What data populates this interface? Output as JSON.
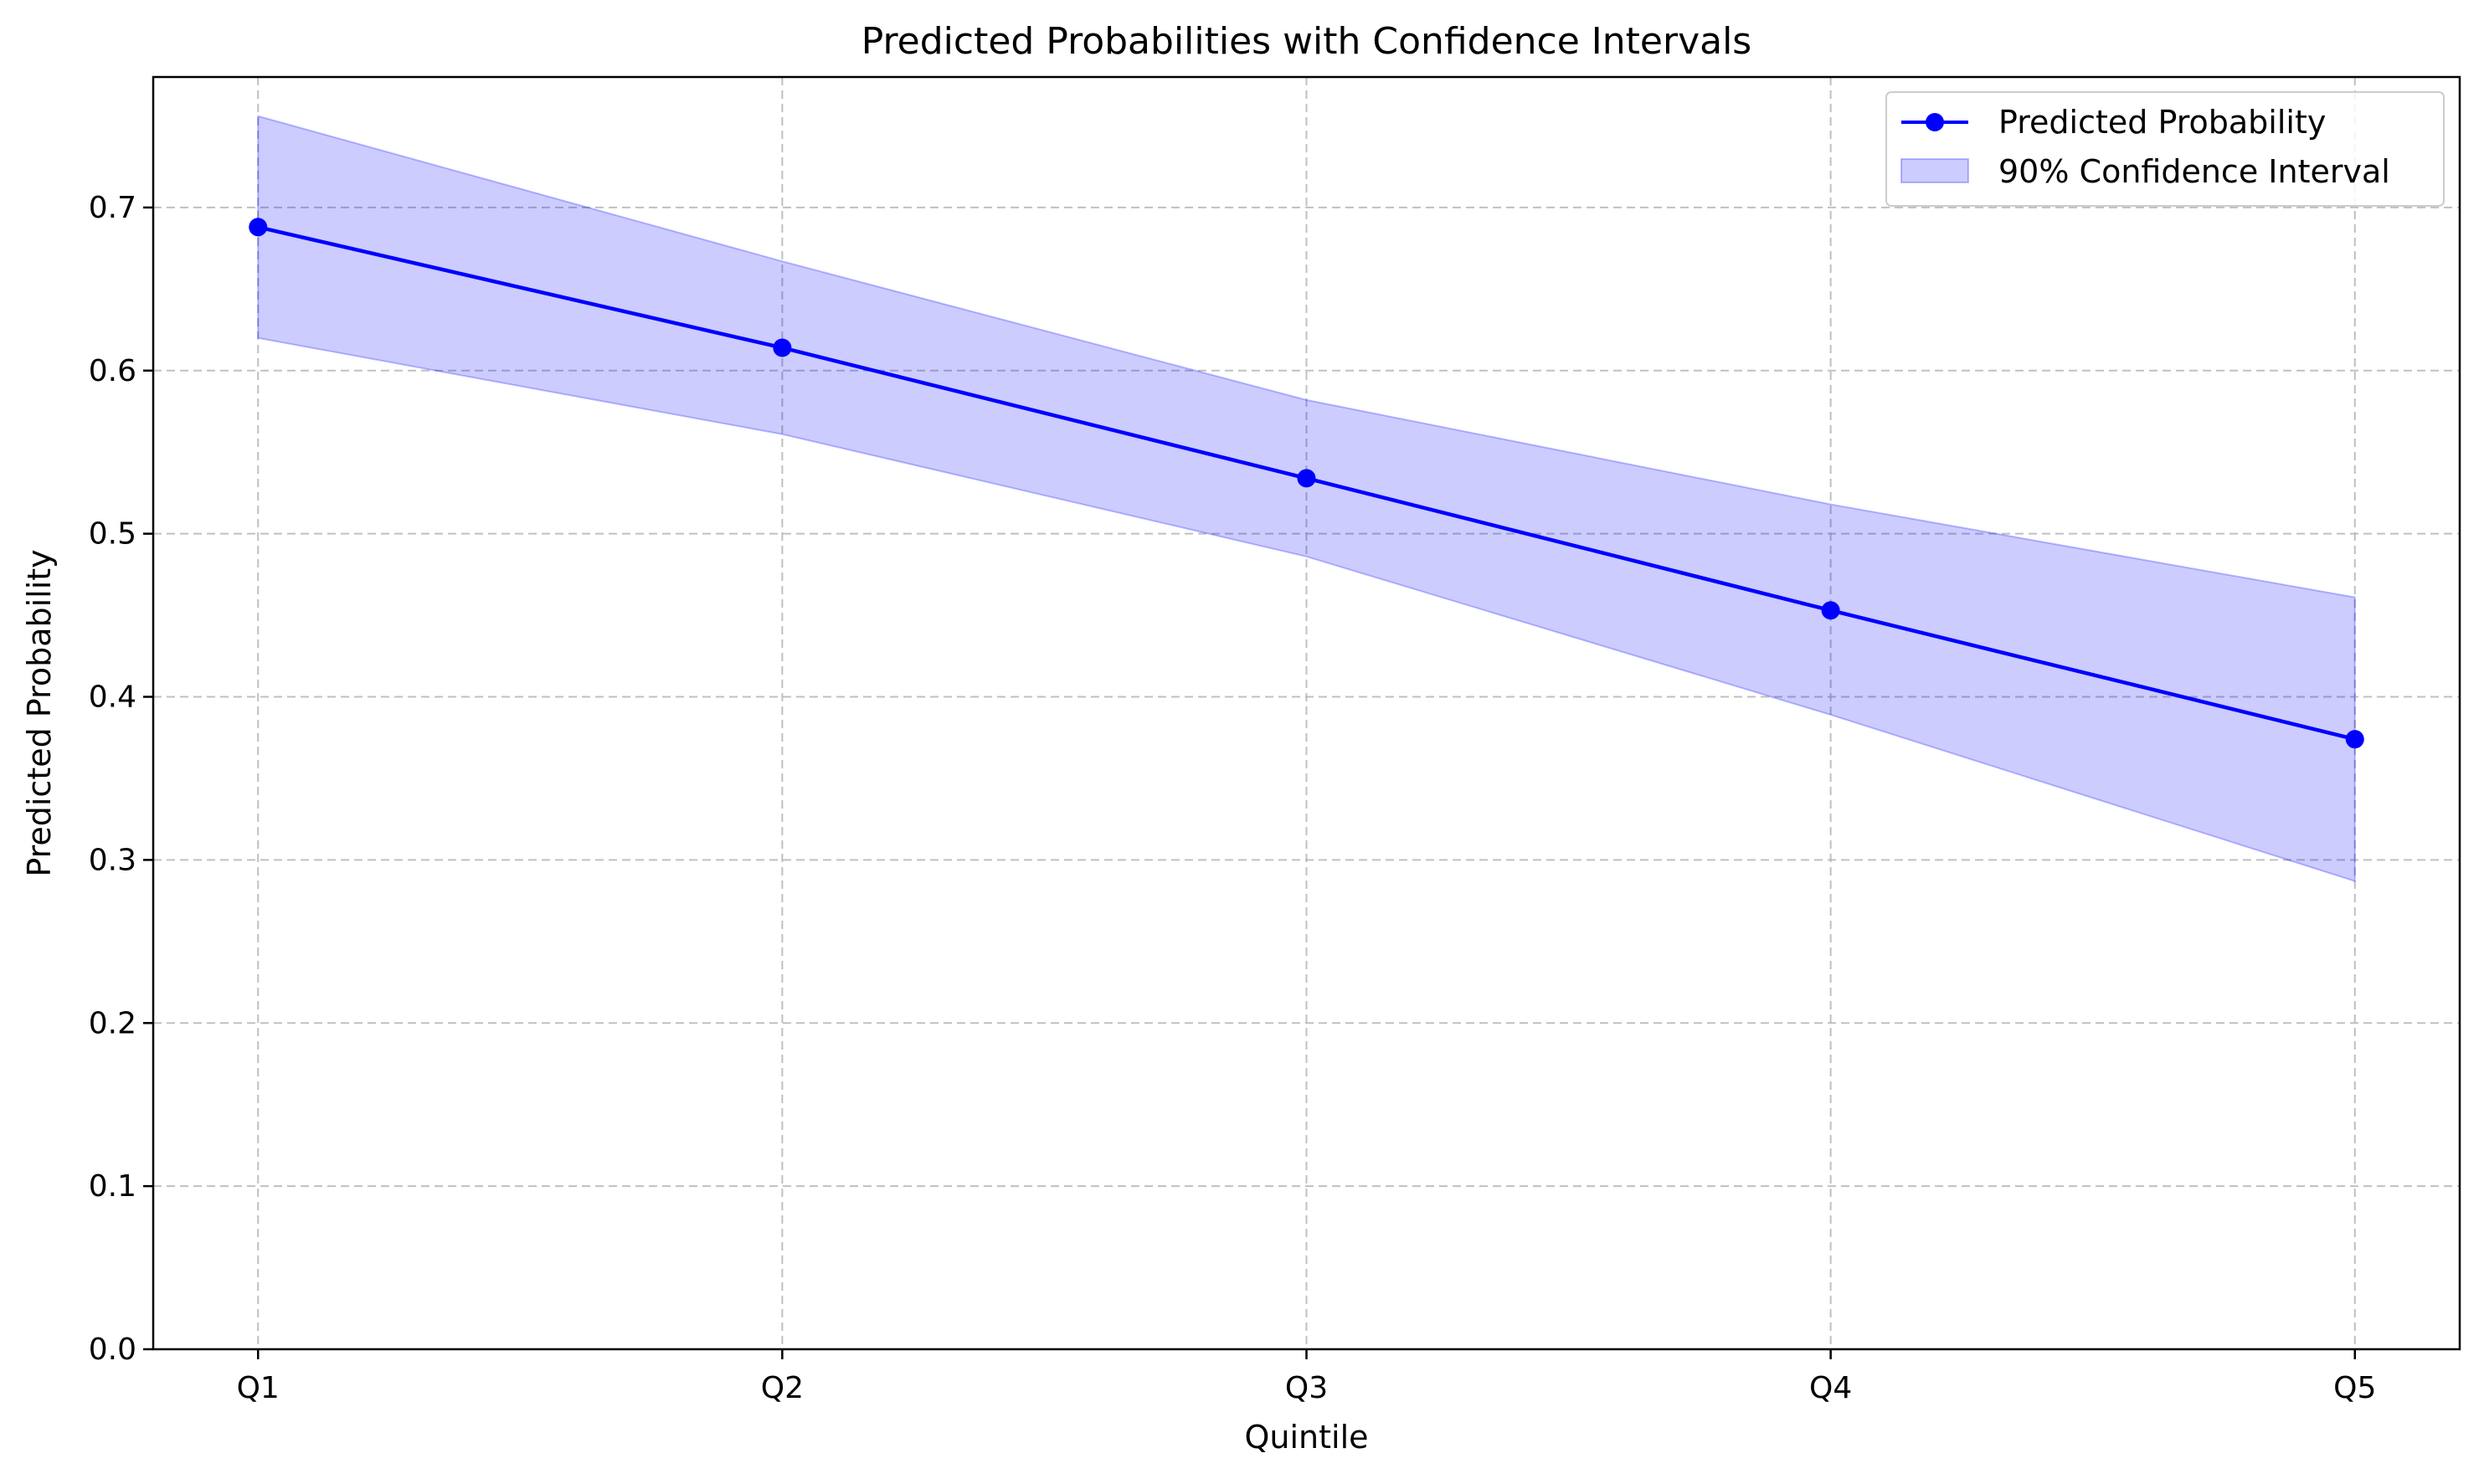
{
  "chart_data": {
    "type": "line",
    "title": "Predicted Probabilities with Confidence Intervals",
    "xlabel": "Quintile",
    "ylabel": "Predicted Probability",
    "categories": [
      "Q1",
      "Q2",
      "Q3",
      "Q4",
      "Q5"
    ],
    "series": [
      {
        "name": "Predicted Probability",
        "values": [
          0.688,
          0.614,
          0.534,
          0.453,
          0.374
        ],
        "color": "#0000ff",
        "marker": "circle"
      }
    ],
    "band": {
      "name": "90% Confidence Interval",
      "lower": [
        0.62,
        0.561,
        0.486,
        0.389,
        0.287
      ],
      "upper": [
        0.756,
        0.667,
        0.582,
        0.518,
        0.461
      ],
      "color": "#0000ff",
      "opacity": 0.2
    },
    "ylim": [
      0,
      0.78
    ],
    "yticks": [
      0.0,
      0.1,
      0.2,
      0.3,
      0.4,
      0.5,
      0.6,
      0.7
    ],
    "ytick_labels": [
      "0.0",
      "0.1",
      "0.2",
      "0.3",
      "0.4",
      "0.5",
      "0.6",
      "0.7"
    ],
    "grid": true,
    "grid_style": "dashed",
    "legend_position": "top-right"
  }
}
